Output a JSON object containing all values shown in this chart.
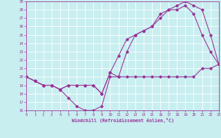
{
  "xlabel": "Windchill (Refroidissement éolien,°C)",
  "background_color": "#c8eef0",
  "line_color": "#993399",
  "grid_color": "#ffffff",
  "xlim": [
    0,
    23
  ],
  "ylim": [
    16,
    29
  ],
  "xticks": [
    0,
    1,
    2,
    3,
    4,
    5,
    6,
    7,
    8,
    9,
    10,
    11,
    12,
    13,
    14,
    15,
    16,
    17,
    18,
    19,
    20,
    21,
    22,
    23
  ],
  "yticks": [
    16,
    17,
    18,
    19,
    20,
    21,
    22,
    23,
    24,
    25,
    26,
    27,
    28,
    29
  ],
  "line1_x": [
    0,
    1,
    2,
    3,
    4,
    5,
    6,
    7,
    8,
    9,
    10,
    11,
    12,
    13,
    14,
    15,
    16,
    17,
    18,
    19,
    20,
    21,
    22,
    23
  ],
  "line1_y": [
    20,
    19.5,
    19,
    19,
    18.5,
    17.5,
    16.5,
    16,
    16,
    16.5,
    20,
    20,
    20,
    20,
    20,
    20,
    20,
    20,
    20,
    20,
    20,
    21,
    21,
    21.5
  ],
  "line2_x": [
    0,
    1,
    2,
    3,
    4,
    5,
    6,
    7,
    8,
    9,
    10,
    11,
    12,
    13,
    14,
    15,
    16,
    17,
    18,
    19,
    20,
    21,
    22,
    23
  ],
  "line2_y": [
    20,
    19.5,
    19,
    19,
    18.5,
    19,
    19,
    19,
    19,
    18,
    20.5,
    20,
    23,
    25,
    25.5,
    26,
    27,
    28,
    28,
    28.5,
    27.5,
    25,
    23,
    21.5
  ],
  "line3_x": [
    0,
    1,
    2,
    3,
    4,
    5,
    6,
    7,
    8,
    9,
    10,
    11,
    12,
    13,
    14,
    15,
    16,
    17,
    18,
    19,
    20,
    21,
    22,
    23
  ],
  "line3_y": [
    20,
    19.5,
    19,
    19,
    18.5,
    19,
    19,
    19,
    19,
    18,
    20.5,
    22.5,
    24.5,
    25,
    25.5,
    26,
    27.5,
    28,
    28.5,
    29,
    28.5,
    28,
    25,
    21.5
  ]
}
